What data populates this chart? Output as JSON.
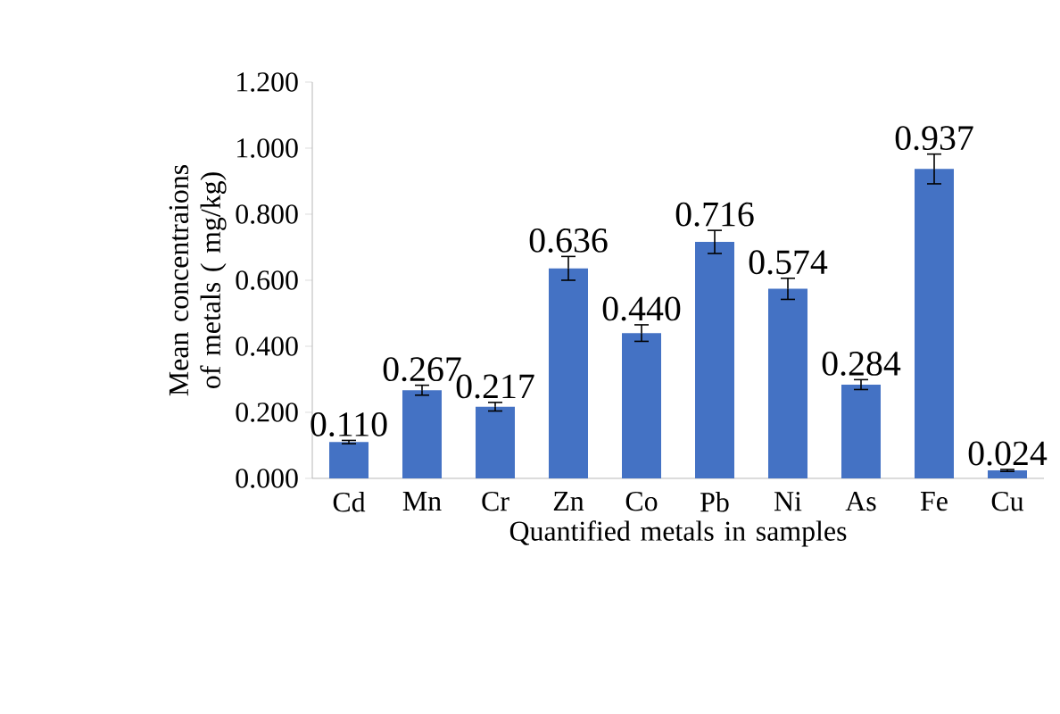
{
  "chart_data": {
    "type": "bar",
    "xlabel": "Quantified metals in samples",
    "ylabel": "Mean concentraions of metals ( mg/kg)",
    "categories": [
      "Cd",
      "Mn",
      "Cr",
      "Zn",
      "Co",
      "Pb",
      "Ni",
      "As",
      "Fe",
      "Cu"
    ],
    "values": [
      0.11,
      0.267,
      0.217,
      0.636,
      0.44,
      0.716,
      0.574,
      0.284,
      0.937,
      0.024
    ],
    "errors": [
      0.005,
      0.015,
      0.013,
      0.036,
      0.025,
      0.035,
      0.032,
      0.015,
      0.045,
      0.003
    ],
    "value_labels": [
      "0.110",
      "0.267",
      "0.217",
      "0.636",
      "0.440",
      "0.716",
      "0.574",
      "0.284",
      "0.937",
      "0.024"
    ],
    "color": "#4472c4",
    "ylim": [
      0,
      1.2
    ],
    "yticks": [
      {
        "value": 0,
        "label": "0.000"
      },
      {
        "value": 0.2,
        "label": "0.200"
      },
      {
        "value": 0.4,
        "label": "0.400"
      },
      {
        "value": 0.6,
        "label": "0.600"
      },
      {
        "value": 0.8,
        "label": "0.800"
      },
      {
        "value": 1.0,
        "label": "1.000"
      },
      {
        "value": 1.2,
        "label": "1.200"
      }
    ],
    "grid": false
  }
}
